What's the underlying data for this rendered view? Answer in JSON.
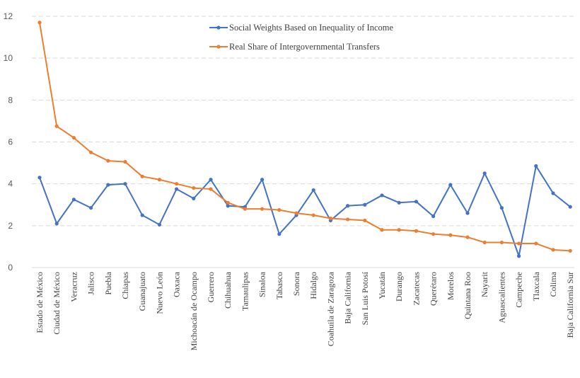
{
  "chart_data": {
    "type": "line",
    "title": "",
    "xlabel": "",
    "ylabel": "",
    "ylim": [
      0,
      12
    ],
    "yticks": [
      0,
      2,
      4,
      6,
      8,
      10,
      12
    ],
    "grid": true,
    "legend_position": "top-center",
    "categories": [
      "Estado de México",
      "Ciudad de México",
      "Veracruz",
      "Jalisco",
      "Puebla",
      "Chiapas",
      "Guanajuato",
      "Nuevo León",
      "Oaxaca",
      "Michoacán de Ocampo",
      "Guerrero",
      "Chihuahua",
      "Tamaulipas",
      "Sinaloa",
      "Tabasco",
      "Sonora",
      "Hidalgo",
      "Coahuila de Zaragoza",
      "Baja California",
      "San Luis Potosí",
      "Yucatán",
      "Durango",
      "Zacatecas",
      "Querétaro",
      "Morelos",
      "Quintana Roo",
      "Nayarit",
      "Aguascalientes",
      "Campeche",
      "Tlaxcala",
      "Colima",
      "Baja California Sur"
    ],
    "series": [
      {
        "name": "Social Weights Based on Inequality of Income",
        "color": "#4472c4",
        "values": [
          4.3,
          2.1,
          3.25,
          2.85,
          3.95,
          4.0,
          2.5,
          2.05,
          3.75,
          3.3,
          4.2,
          2.95,
          2.9,
          4.2,
          1.6,
          2.5,
          3.7,
          2.25,
          2.95,
          3.0,
          3.45,
          3.1,
          3.15,
          2.45,
          3.95,
          2.6,
          4.5,
          2.85,
          0.55,
          4.85,
          3.55,
          2.9
        ]
      },
      {
        "name": "Real Share of Intergovernmental Transfers",
        "color": "#ed7d31",
        "values": [
          11.7,
          6.75,
          6.2,
          5.5,
          5.1,
          5.05,
          4.35,
          4.2,
          4.0,
          3.8,
          3.75,
          3.1,
          2.8,
          2.8,
          2.75,
          2.6,
          2.5,
          2.35,
          2.3,
          2.25,
          1.8,
          1.8,
          1.75,
          1.6,
          1.55,
          1.45,
          1.2,
          1.2,
          1.15,
          1.15,
          0.85,
          0.8
        ]
      }
    ]
  }
}
